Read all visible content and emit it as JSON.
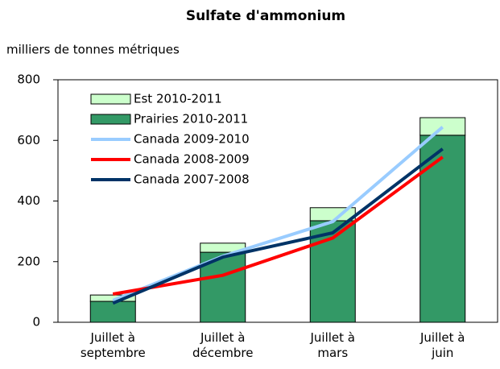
{
  "chart_data": {
    "type": "bar",
    "stacked": true,
    "title": "Sulfate d'ammonium",
    "y_axis_label": "milliers de tonnes métriques",
    "categories": [
      "Juillet à\nseptembre",
      "Juillet à\ndécembre",
      "Juillet à\nmars",
      "Juillet à\njuin"
    ],
    "series": [
      {
        "name": "Est 2010-2011",
        "type": "bar",
        "color": "#ccffcc",
        "values": [
          21,
          30,
          43,
          58
        ]
      },
      {
        "name": "Prairies 2010-2011",
        "type": "bar",
        "color": "#339966",
        "values": [
          69,
          231,
          335,
          617
        ]
      },
      {
        "name": "Canada 2009-2010",
        "type": "line",
        "color": "#99ccff",
        "values": [
          72,
          218,
          332,
          644
        ]
      },
      {
        "name": "Canada 2008-2009",
        "type": "line",
        "color": "#ff0000",
        "values": [
          93,
          155,
          278,
          545
        ]
      },
      {
        "name": "Canada 2007-2008",
        "type": "line",
        "color": "#003366",
        "values": [
          63,
          215,
          295,
          572
        ]
      }
    ],
    "ylim": [
      0,
      800
    ],
    "yticks": [
      0,
      200,
      400,
      600,
      800
    ],
    "grid": false,
    "legend": "top-left"
  }
}
